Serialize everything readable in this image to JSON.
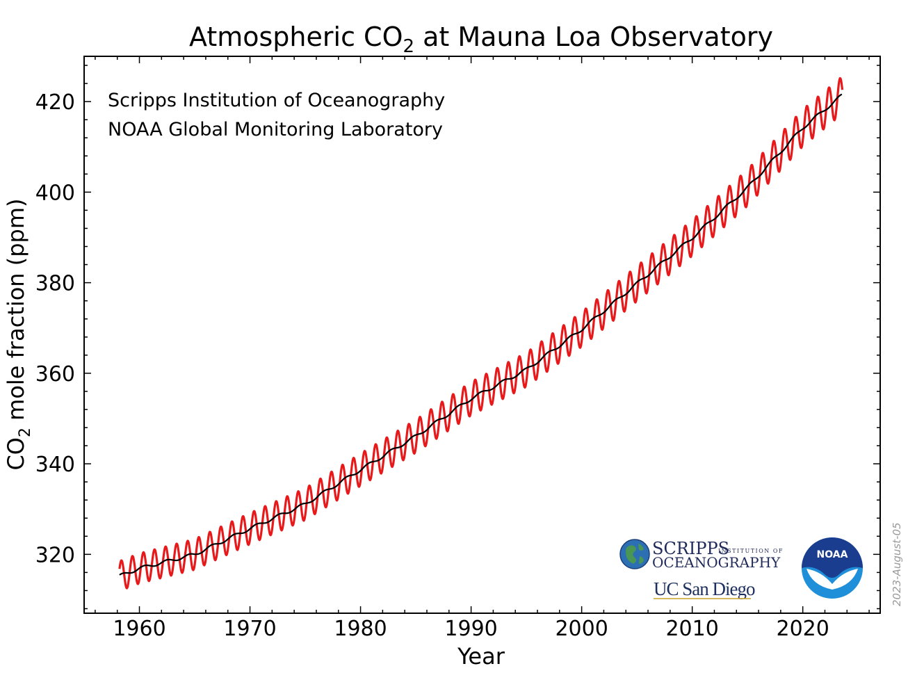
{
  "chart_data": {
    "type": "line",
    "title": {
      "main": "Atmospheric CO",
      "sub": "2",
      "rest": " at Mauna Loa Observatory"
    },
    "xlabel": "Year",
    "ylabel": {
      "pre": "CO",
      "sub": "2",
      "post": " mole fraction (ppm)"
    },
    "xlim": [
      1955,
      2027
    ],
    "ylim": [
      307,
      430
    ],
    "x_ticks": [
      1960,
      1970,
      1980,
      1990,
      2000,
      2010,
      2020
    ],
    "x_tick_labels": [
      "1960",
      "1970",
      "1980",
      "1990",
      "2000",
      "2010",
      "2020"
    ],
    "y_ticks": [
      320,
      340,
      360,
      380,
      400,
      420
    ],
    "y_tick_labels": [
      "320",
      "340",
      "360",
      "380",
      "400",
      "420"
    ],
    "grid": false,
    "annotations": [
      "Scripps Institution of Oceanography",
      "NOAA Global Monitoring Laboratory"
    ],
    "date_stamp": "2023-August-05",
    "series": [
      {
        "role": "monthly",
        "color": "#e8191b",
        "trend_x": [
          1958.2,
          1960,
          1965,
          1970,
          1975,
          1980,
          1985,
          1990,
          1995,
          2000,
          2005,
          2010,
          2015,
          2020,
          2023.6
        ],
        "trend_y": [
          315.2,
          316.9,
          320.0,
          325.7,
          331.1,
          338.7,
          346.1,
          354.4,
          360.8,
          369.7,
          379.8,
          389.9,
          401.0,
          414.2,
          421.5
        ],
        "seasonal_amplitude": 3.3
      },
      {
        "role": "deseasonalized",
        "color": "#000000",
        "x": [
          1958.2,
          1960,
          1965,
          1970,
          1975,
          1980,
          1985,
          1990,
          1995,
          2000,
          2005,
          2010,
          2015,
          2020,
          2023.6
        ],
        "y": [
          315.2,
          316.9,
          320.0,
          325.7,
          331.1,
          338.7,
          346.1,
          354.4,
          360.8,
          369.7,
          379.8,
          389.9,
          401.0,
          414.2,
          421.5
        ]
      }
    ]
  },
  "logos": {
    "scripps_line1": "SCRIPPS",
    "scripps_small": "INSTITUTION OF",
    "scripps_line2": "OCEANOGRAPHY",
    "ucsd": "UC San Diego",
    "noaa": "NOAA",
    "scripps_globe_color": "#2d6fb3",
    "noaa_dark": "#1a3d8f",
    "noaa_light": "#1e8fd8"
  }
}
